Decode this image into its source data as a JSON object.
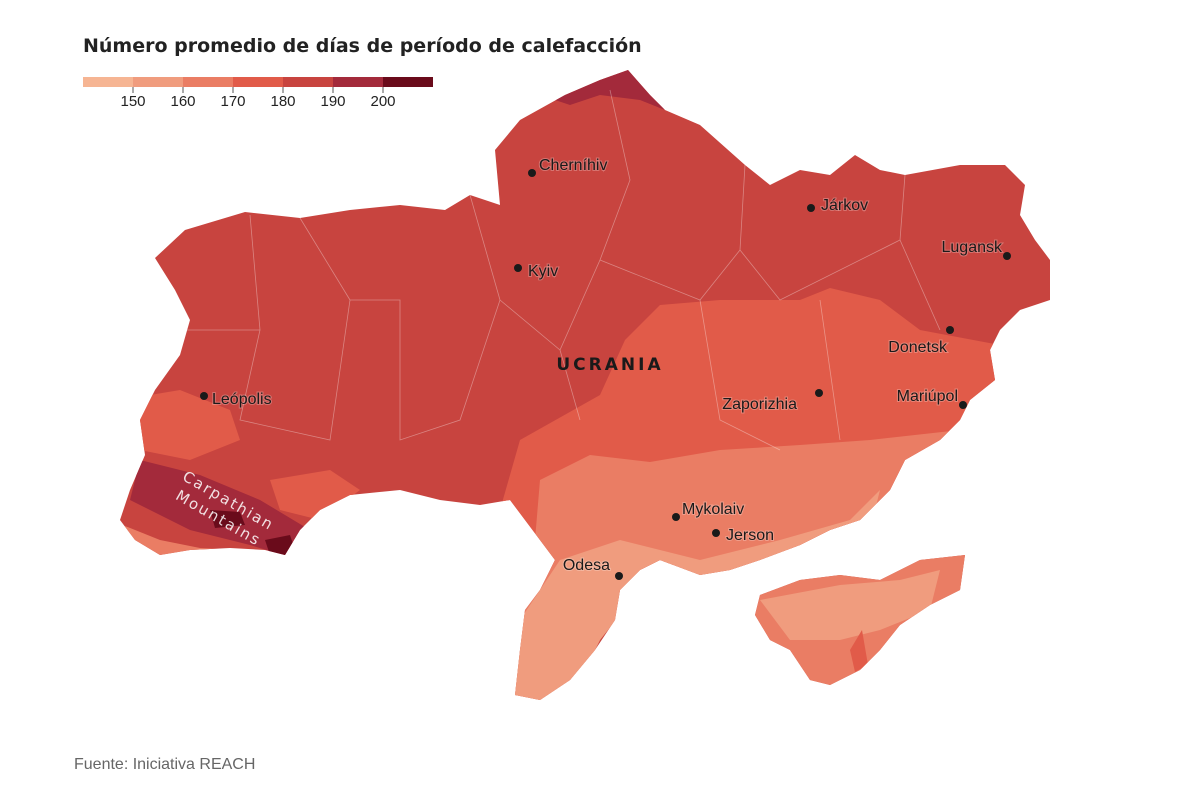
{
  "header": {
    "title": "Número promedio de días de período de calefacción"
  },
  "legend": {
    "colors": [
      "#f6b593",
      "#f09c7e",
      "#ea7d64",
      "#e15b49",
      "#c8443f",
      "#a32a3b",
      "#6a0b1b"
    ],
    "ticks": [
      150,
      160,
      170,
      180,
      190,
      200
    ]
  },
  "map": {
    "country_label": "UCRANIA",
    "region_label_lines": [
      "Carpathian",
      "Mountains"
    ],
    "cities": [
      "Cherníhiv",
      "Kyiv",
      "Járkov",
      "Lugansk",
      "Donetsk",
      "Mariúpol",
      "Zaporizhia",
      "Leópolis",
      "Mykolaiv",
      "Jerson",
      "Odesa"
    ]
  },
  "source": "Fuente: Iniciativa REACH"
}
